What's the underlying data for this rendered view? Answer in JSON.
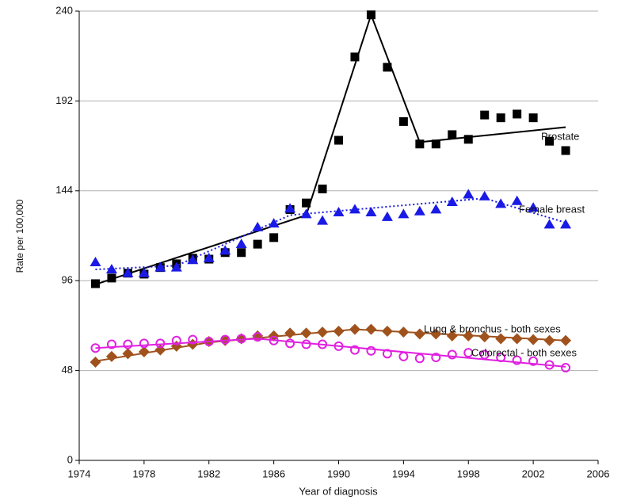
{
  "chart_data": {
    "type": "line",
    "x_label": "Year of diagnosis",
    "y_label": "Rate per 100,000",
    "x": [
      1975,
      1976,
      1977,
      1978,
      1979,
      1980,
      1981,
      1982,
      1983,
      1984,
      1985,
      1986,
      1987,
      1988,
      1989,
      1990,
      1991,
      1992,
      1993,
      1994,
      1995,
      1996,
      1997,
      1998,
      1999,
      2000,
      2001,
      2002,
      2003,
      2004
    ],
    "xlim": [
      1974,
      2006
    ],
    "xticks": [
      1974,
      1978,
      1982,
      1986,
      1990,
      1994,
      1998,
      2002,
      2006
    ],
    "ylim": [
      0,
      240
    ],
    "yticks": [
      0,
      48,
      96,
      144,
      192,
      240
    ],
    "grid": true,
    "series": [
      {
        "name": "Prostate",
        "color": "#000000",
        "marker": "square",
        "values": [
          94.4,
          97.4,
          100,
          99.5,
          103,
          105,
          108,
          107.5,
          111,
          111,
          115.5,
          119,
          134,
          137.5,
          145,
          171,
          215.5,
          238,
          210,
          181,
          169,
          169,
          174,
          171.5,
          184.5,
          183,
          185,
          183,
          170.5,
          165.5
        ],
        "fit_x": [
          1975,
          1988,
          1992,
          1995,
          2004
        ],
        "fit_values": [
          94,
          131,
          238,
          170,
          178
        ],
        "fit_dash": false
      },
      {
        "name": "Female breast",
        "color": "#1a1ae6",
        "marker": "triangle",
        "values": [
          105.8,
          102,
          100,
          100,
          103,
          103,
          107,
          108,
          112,
          115.5,
          124.5,
          126.5,
          134.5,
          131.5,
          128,
          132.5,
          134,
          132.5,
          130,
          131.5,
          133,
          134,
          138,
          142,
          141,
          137,
          138.5,
          135,
          126,
          126
        ],
        "fit_x": [
          1975,
          1980,
          1987,
          1999,
          2004
        ],
        "fit_values": [
          102,
          104,
          131,
          140,
          127
        ],
        "fit_dash": true
      },
      {
        "name": "Lung & bronchus - both sexes",
        "color": "#a0521d",
        "marker": "diamond",
        "values": [
          52.5,
          55.5,
          57,
          58,
          59,
          61,
          62,
          63.5,
          64,
          65,
          66.5,
          66.5,
          68,
          68,
          68.5,
          69,
          70,
          70,
          69,
          68.5,
          67.5,
          67.5,
          66.5,
          66.5,
          66,
          65,
          65,
          64.5,
          64,
          64
        ],
        "fit_x": [
          1975,
          1982,
          1991,
          2004
        ],
        "fit_values": [
          53,
          63,
          70,
          64
        ],
        "fit_dash": false
      },
      {
        "name": "Colorectal - both sexes",
        "color": "#e020e0",
        "marker": "circle",
        "values": [
          60,
          62,
          62,
          62.5,
          62.5,
          64,
          64.5,
          63.5,
          64.5,
          65,
          66,
          64,
          62.5,
          62,
          62,
          61,
          59,
          58.5,
          57,
          55.5,
          54.5,
          55,
          56.5,
          57.5,
          56.5,
          55,
          53.5,
          53,
          51,
          49.5
        ],
        "fit_x": [
          1975,
          1985,
          2004
        ],
        "fit_values": [
          60,
          65,
          50
        ],
        "fit_dash": false
      }
    ]
  }
}
